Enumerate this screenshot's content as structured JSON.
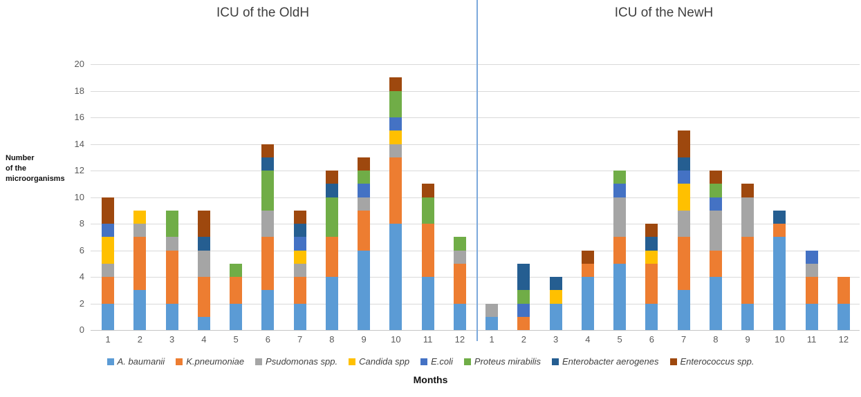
{
  "page": {
    "months_label": "Months",
    "y_axis_label_lines": [
      "Number",
      "of the",
      "microorganisms"
    ]
  },
  "colors": {
    "gridline": "#D9D9D9",
    "axis_line": "#C6C6C6",
    "separator_line": "#7CA9DC",
    "tick_text": "#595959",
    "title_text": "#3F3F3F"
  },
  "chart_data": [
    {
      "type": "bar",
      "stacked": true,
      "title": "ICU of the OldH",
      "xlabel": "Months",
      "ylabel": "Number of the microorganisms",
      "ylim": [
        0,
        20
      ],
      "ytick_step": 2,
      "grid": true,
      "legend_position": "bottom",
      "categories": [
        "1",
        "2",
        "3",
        "4",
        "5",
        "6",
        "7",
        "8",
        "9",
        "10",
        "11",
        "12"
      ],
      "totals": [
        10,
        9,
        9,
        9,
        5,
        14,
        9,
        12,
        13,
        19,
        11,
        7
      ],
      "series": [
        {
          "name": "A. baumanii",
          "color": "#5B9BD5",
          "values": [
            2,
            3,
            2,
            1,
            2,
            3,
            2,
            4,
            6,
            8,
            4,
            2
          ]
        },
        {
          "name": "K.pneumoniae",
          "color": "#ED7D31",
          "values": [
            2,
            4,
            4,
            3,
            2,
            4,
            2,
            3,
            3,
            5,
            4,
            3
          ]
        },
        {
          "name": "Psudomonas spp.",
          "color": "#A5A5A5",
          "values": [
            1,
            1,
            1,
            2,
            0,
            2,
            1,
            0,
            1,
            1,
            0,
            1
          ]
        },
        {
          "name": "Candida spp",
          "color": "#FFC000",
          "values": [
            2,
            1,
            0,
            0,
            0,
            0,
            1,
            0,
            0,
            1,
            0,
            0
          ]
        },
        {
          "name": "E.coli",
          "color": "#4472C4",
          "values": [
            1,
            0,
            0,
            0,
            0,
            0,
            1,
            0,
            1,
            1,
            0,
            0
          ]
        },
        {
          "name": "Proteus mirabilis",
          "color": "#70AD47",
          "values": [
            0,
            0,
            2,
            0,
            1,
            3,
            0,
            3,
            1,
            2,
            2,
            1
          ]
        },
        {
          "name": "Enterobacter aerogenes",
          "color": "#255E91",
          "values": [
            0,
            0,
            0,
            1,
            0,
            1,
            1,
            1,
            0,
            0,
            0,
            0
          ]
        },
        {
          "name": "Enterococcus spp.",
          "color": "#9E480E",
          "values": [
            2,
            0,
            0,
            2,
            0,
            1,
            1,
            1,
            1,
            1,
            1,
            0
          ]
        }
      ]
    },
    {
      "type": "bar",
      "stacked": true,
      "title": "ICU of the NewH",
      "xlabel": "Months",
      "ylabel": "Number of the microorganisms",
      "ylim": [
        0,
        20
      ],
      "ytick_step": 2,
      "grid": true,
      "legend_position": "bottom",
      "categories": [
        "1",
        "2",
        "3",
        "4",
        "5",
        "6",
        "7",
        "8",
        "9",
        "10",
        "11",
        "12"
      ],
      "totals": [
        2,
        5,
        4,
        6,
        12,
        8,
        15,
        12,
        11,
        9,
        6,
        4
      ],
      "series": [
        {
          "name": "A. baumanii",
          "color": "#5B9BD5",
          "values": [
            1,
            0,
            2,
            4,
            5,
            2,
            3,
            4,
            2,
            7,
            2,
            2
          ]
        },
        {
          "name": "K.pneumoniae",
          "color": "#ED7D31",
          "values": [
            0,
            1,
            0,
            1,
            2,
            3,
            4,
            2,
            5,
            1,
            2,
            2
          ]
        },
        {
          "name": "Psudomonas spp.",
          "color": "#A5A5A5",
          "values": [
            1,
            0,
            0,
            0,
            3,
            0,
            2,
            3,
            3,
            0,
            1,
            0
          ]
        },
        {
          "name": "Candida spp",
          "color": "#FFC000",
          "values": [
            0,
            0,
            1,
            0,
            0,
            1,
            2,
            0,
            0,
            0,
            0,
            0
          ]
        },
        {
          "name": "E.coli",
          "color": "#4472C4",
          "values": [
            0,
            1,
            0,
            0,
            1,
            0,
            1,
            1,
            0,
            0,
            1,
            0
          ]
        },
        {
          "name": "Proteus mirabilis",
          "color": "#70AD47",
          "values": [
            0,
            1,
            0,
            0,
            1,
            0,
            0,
            1,
            0,
            0,
            0,
            0
          ]
        },
        {
          "name": "Enterobacter aerogenes",
          "color": "#255E91",
          "values": [
            0,
            2,
            1,
            0,
            0,
            1,
            1,
            0,
            0,
            1,
            0,
            0
          ]
        },
        {
          "name": "Enterococcus spp.",
          "color": "#9E480E",
          "values": [
            0,
            0,
            0,
            1,
            0,
            1,
            2,
            1,
            1,
            0,
            0,
            0
          ]
        }
      ]
    }
  ]
}
